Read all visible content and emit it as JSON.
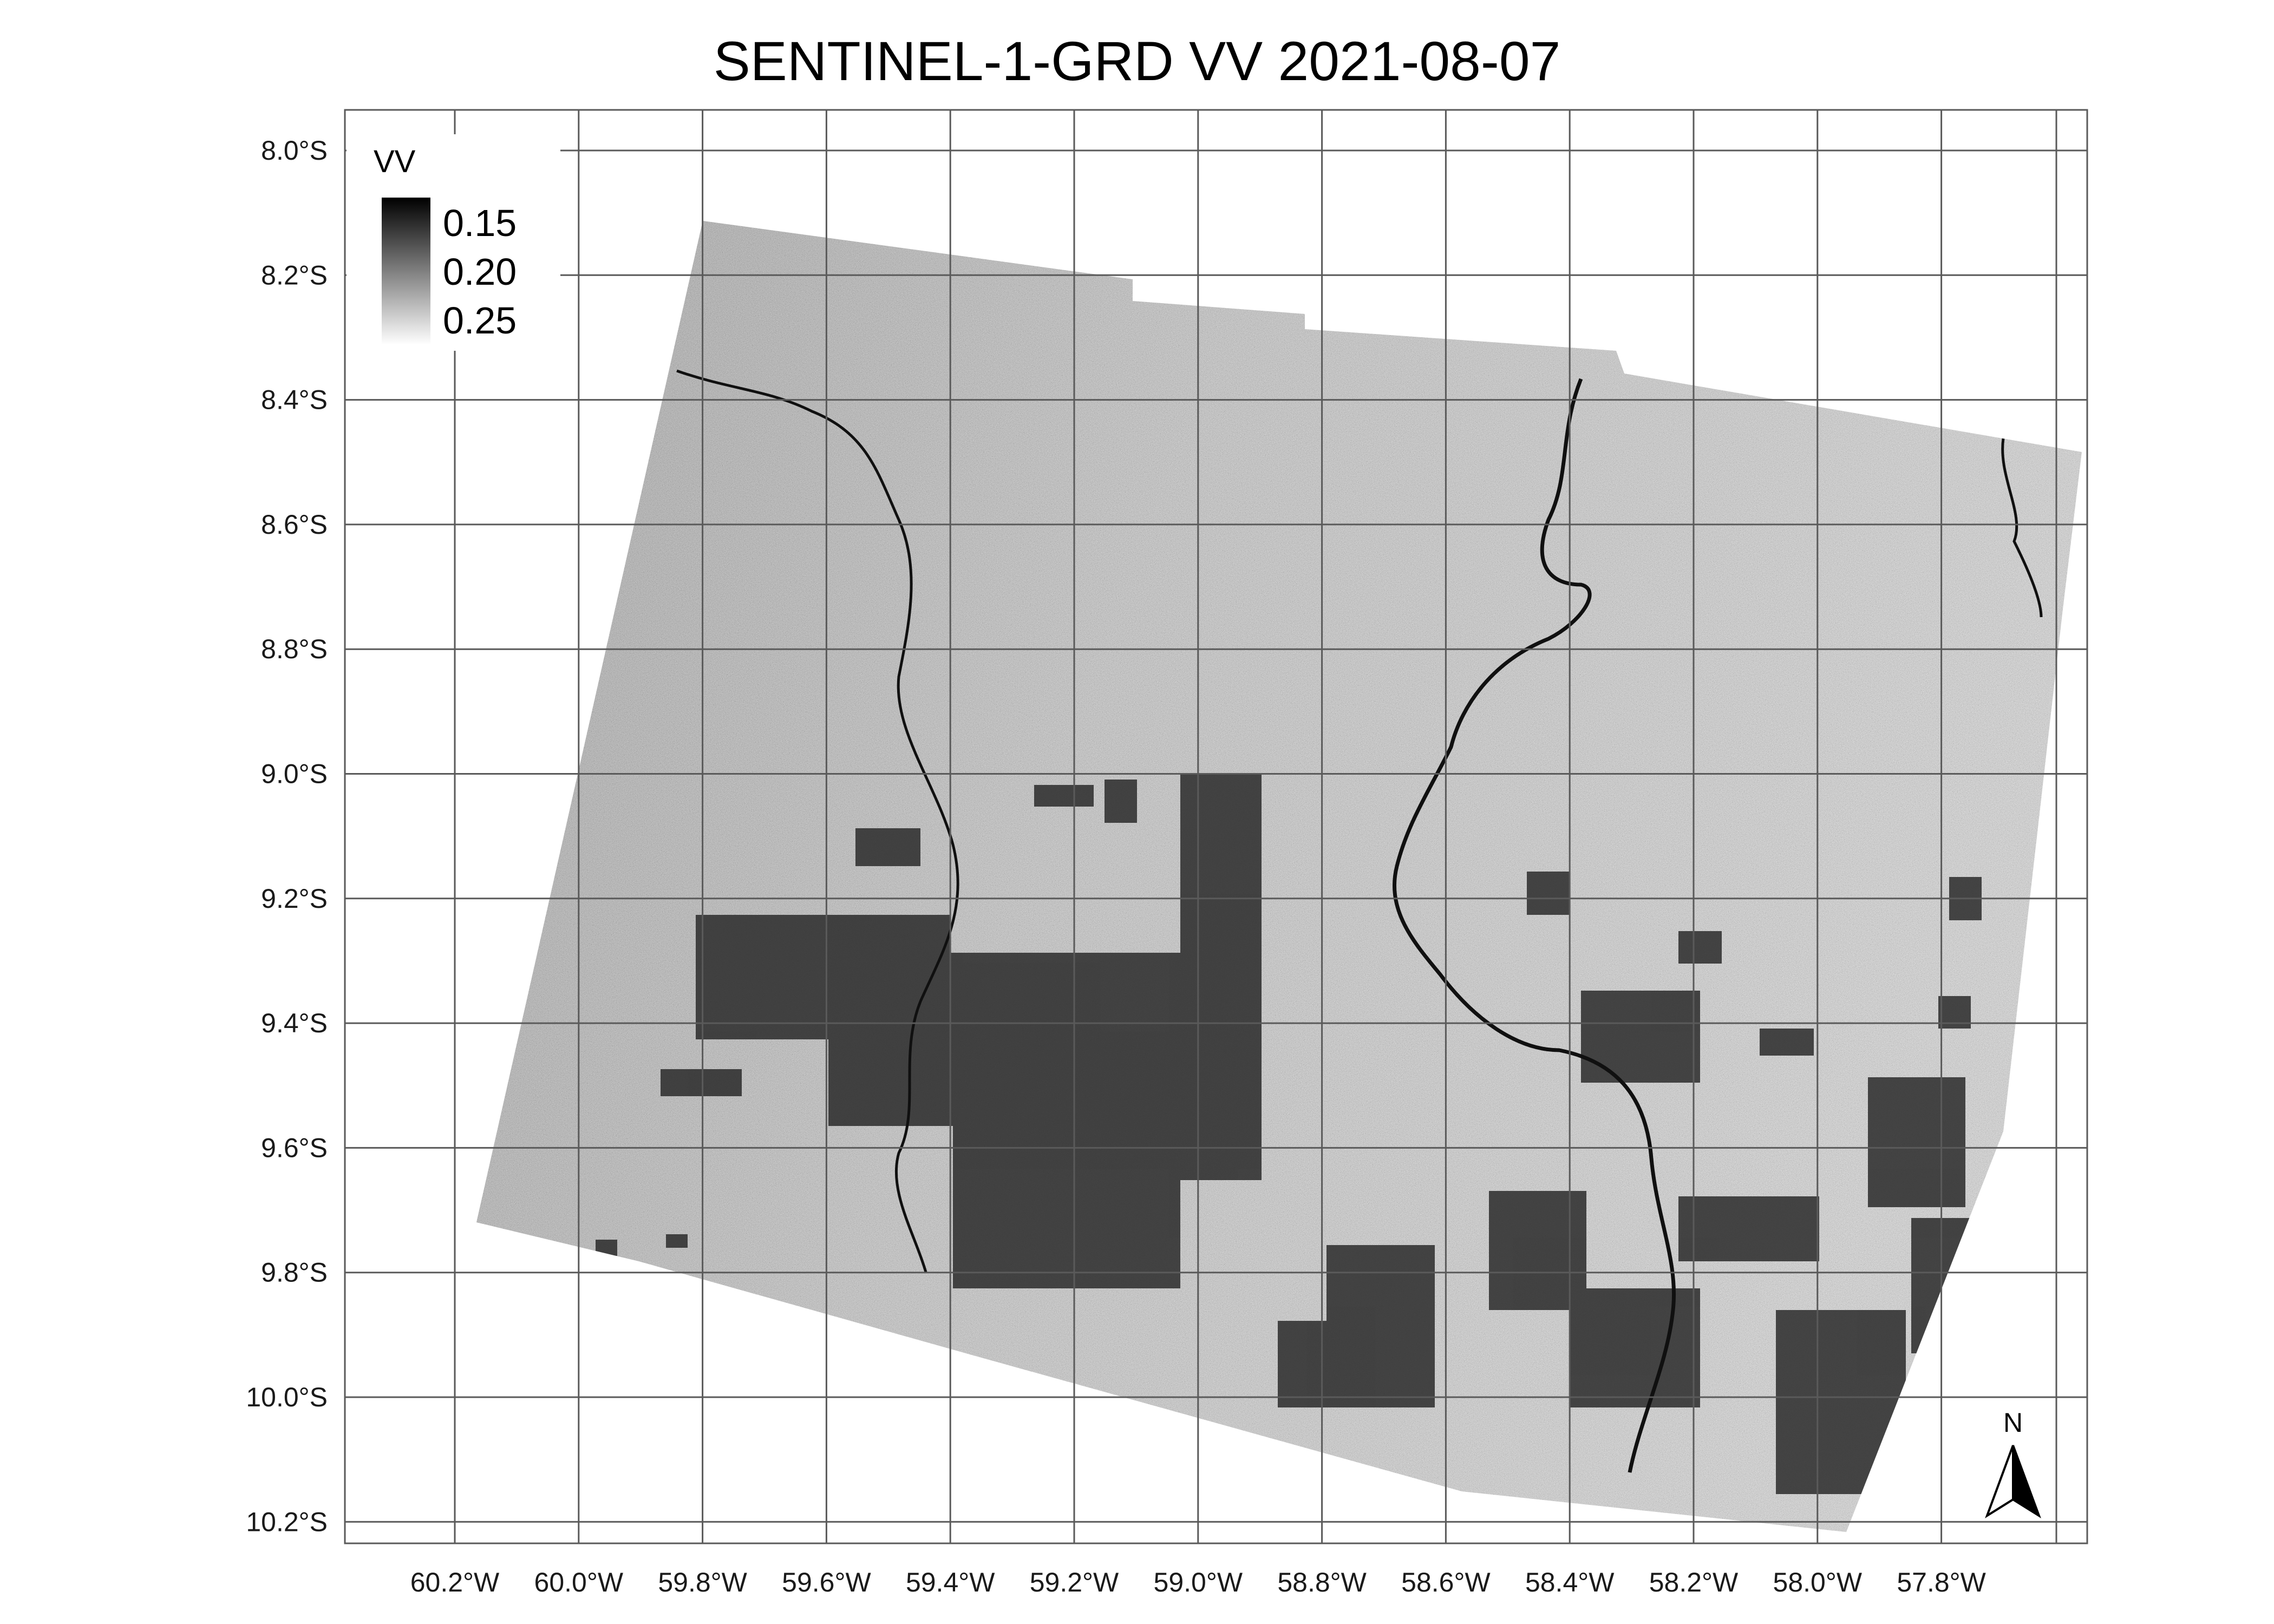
{
  "map": {
    "title": "SENTINEL-1-GRD VV 2021-08-07",
    "lon_ticks": [
      "60.2°W",
      "60.0°W",
      "59.8°W",
      "59.6°W",
      "59.4°W",
      "59.2°W",
      "59.0°W",
      "58.8°W",
      "58.6°W",
      "58.4°W",
      "58.2°W",
      "58.0°W",
      "57.8°W"
    ],
    "lat_ticks": [
      "8.0°S",
      "8.2°S",
      "8.4°S",
      "8.6°S",
      "8.8°S",
      "9.0°S",
      "9.2°S",
      "9.4°S",
      "9.6°S",
      "9.8°S",
      "10.0°S",
      "10.2°S"
    ],
    "legend": {
      "title": "VV",
      "labels": [
        "0.15",
        "0.20",
        "0.25"
      ],
      "color_low": "#000000",
      "color_high": "#ffffff"
    },
    "north_arrow": {
      "label": "N"
    },
    "colors": {
      "grid": "#5a5a5a",
      "raster_mid": "#b4b4b4",
      "dark_fields": "#2a2a2a",
      "river": "#101010"
    }
  }
}
